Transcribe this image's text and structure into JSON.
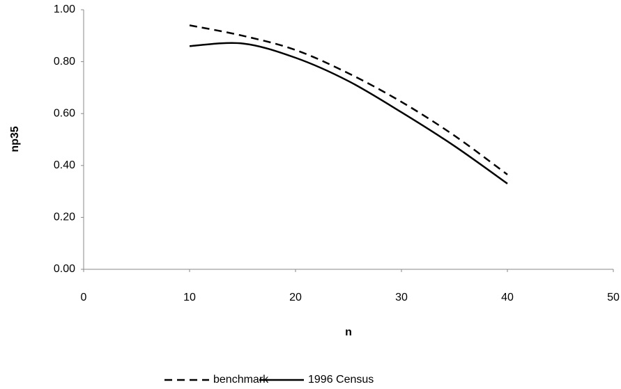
{
  "chart_data": {
    "type": "line",
    "x_label": "n",
    "y_label": "np35",
    "series": [
      {
        "name": "benchmark",
        "color": "#000000",
        "dash": true,
        "x": [
          10,
          15,
          20,
          25,
          30,
          35,
          40
        ],
        "values": [
          0.94,
          0.9,
          0.845,
          0.755,
          0.645,
          0.515,
          0.365
        ]
      },
      {
        "name": "1996 Census",
        "color": "#000000",
        "dash": false,
        "x": [
          10,
          15,
          20,
          25,
          30,
          35,
          40
        ],
        "values": [
          0.86,
          0.87,
          0.815,
          0.725,
          0.605,
          0.475,
          0.33
        ]
      }
    ],
    "xlim": [
      0,
      50
    ],
    "xticks": [
      0,
      10,
      20,
      30,
      40,
      50
    ],
    "ylim": [
      0,
      1
    ],
    "yticks": [
      {
        "value": 0,
        "label": "0.00"
      },
      {
        "value": 0.2,
        "label": "0.20"
      },
      {
        "value": 0.4,
        "label": "0.40"
      },
      {
        "value": 0.6,
        "label": "0.60"
      },
      {
        "value": 0.8,
        "label": "0.80"
      },
      {
        "value": 1,
        "label": "1.00"
      }
    ],
    "grid": false,
    "legend": "bottom"
  }
}
